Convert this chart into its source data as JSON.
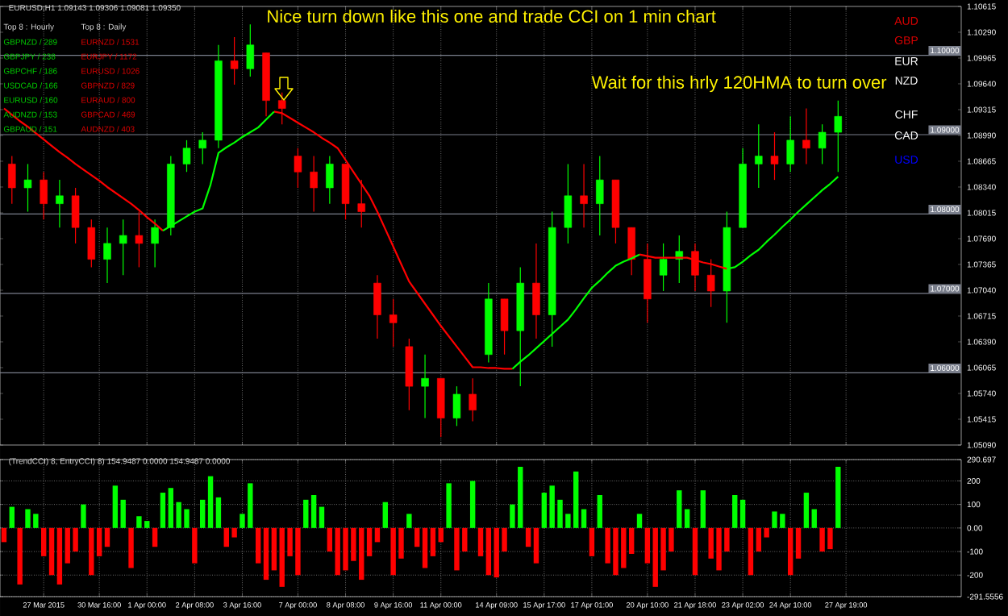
{
  "chart_data": [
    {
      "type": "candlestick",
      "title": "EURUSD,H1 1.09143 1.09306 1.09081 1.09350",
      "annotations": [
        "Nice turn down like this one and trade CCI on 1 min chart",
        "Wait for this hrly 120HMA  to turn over",
        "Top 8 : Hourly",
        "Top 8 : Daily",
        "GBPNZD / 289",
        "GBPJPY / 238",
        "GBPCHF / 186",
        "USDCAD / 166",
        "EURUSD / 160",
        "AUDNZD / 153",
        "GBPAUD / 151",
        "EURNZD / 1531",
        "EURJPY / 1172",
        "EURUSD / 1026",
        "GBPNZD / 829",
        "EURAUD / 800",
        "GBPCAD / 469",
        "AUDNZD / 403",
        "AUD",
        "GBP",
        "EUR",
        "NZD",
        "CHF",
        "CAD",
        "USD"
      ],
      "categories": [
        null,
        null,
        null,
        null,
        null,
        null,
        null,
        null,
        null,
        null,
        null,
        null,
        null,
        null,
        null,
        null,
        null,
        null,
        null,
        null,
        null,
        null,
        null,
        null,
        null,
        null,
        null,
        null,
        null,
        null,
        null,
        null,
        null,
        null,
        null,
        null,
        null,
        null,
        null,
        null,
        null,
        null,
        null,
        null,
        null,
        null,
        null,
        null,
        null,
        null,
        null,
        null,
        null,
        null,
        null,
        null,
        null,
        null,
        null,
        null,
        null,
        null,
        null,
        null,
        null,
        null,
        null,
        null,
        null,
        null,
        null,
        null,
        null,
        null,
        null,
        null,
        null,
        null,
        null,
        null,
        null,
        null,
        null,
        null,
        null,
        null,
        null,
        null,
        null,
        null,
        null,
        null,
        null,
        null,
        null,
        null,
        null,
        null,
        null,
        null,
        null,
        null,
        null,
        null,
        null,
        null,
        null,
        null,
        null,
        null,
        null,
        null,
        null,
        null,
        null,
        null,
        null,
        null,
        null,
        null,
        null
      ],
      "ylim": [
        1.0509,
        1.10615
      ],
      "yticks": [
        {
          "value": 1.0509,
          "label": "1.05090"
        },
        {
          "value": 1.05415,
          "label": "1.05415"
        },
        {
          "value": 1.0574,
          "label": "1.05740"
        },
        {
          "value": 1.06065,
          "label": "1.06065"
        },
        {
          "value": 1.0639,
          "label": "1.06390"
        },
        {
          "value": 1.06715,
          "label": "1.06715"
        },
        {
          "value": 1.0704,
          "label": "1.07040"
        },
        {
          "value": 1.07365,
          "label": "1.07365"
        },
        {
          "value": 1.0769,
          "label": "1.07690"
        },
        {
          "value": 1.08015,
          "label": "1.08015"
        },
        {
          "value": 1.0834,
          "label": "1.08340"
        },
        {
          "value": 1.08665,
          "label": "1.08665"
        },
        {
          "value": 1.0899,
          "label": "1.08990"
        },
        {
          "value": 1.09315,
          "label": "1.09315"
        },
        {
          "value": 1.0964,
          "label": "1.09640"
        },
        {
          "value": 1.09965,
          "label": "1.09965"
        },
        {
          "value": 1.1029,
          "label": "1.10290"
        },
        {
          "value": 1.10615,
          "label": "1.10615"
        }
      ],
      "tick_labels": "y",
      "grid": "x",
      "ref_lines": [
        {
          "axis": "y",
          "value": 1.06,
          "label": "1.06000",
          "color": "#7a7f8c"
        },
        {
          "axis": "y",
          "value": 1.07,
          "label": "1.07000",
          "color": "#7a7f8c"
        },
        {
          "axis": "y",
          "value": 1.08,
          "label": "1.08000",
          "color": "#7a7f8c"
        },
        {
          "axis": "y",
          "value": 1.09,
          "label": "1.09000",
          "color": "#7a7f8c"
        },
        {
          "axis": "y",
          "value": 1.1,
          "label": "1.10000",
          "color": "#7a7f8c"
        }
      ],
      "series": [
        {
          "type": "candlestick",
          "ohlc": [
            null,
            [
              1.0863,
              1.0873,
              1.0813,
              1.0833
            ],
            null,
            [
              1.0833,
              1.0863,
              1.0803,
              1.0843
            ],
            null,
            [
              1.0843,
              1.0853,
              1.0793,
              1.0813
            ],
            null,
            [
              1.0813,
              1.0843,
              1.0783,
              1.0823
            ],
            null,
            [
              1.0823,
              1.0833,
              1.0763,
              1.0783
            ],
            null,
            [
              1.0783,
              1.0793,
              1.0733,
              1.0743
            ],
            null,
            [
              1.0743,
              1.0783,
              1.0713,
              1.0763
            ],
            null,
            [
              1.0763,
              1.0793,
              1.0723,
              1.0773
            ],
            null,
            [
              1.0773,
              1.0803,
              1.0733,
              1.0763
            ],
            null,
            [
              1.0763,
              1.0793,
              1.0733,
              1.0783
            ],
            null,
            [
              1.0783,
              1.0873,
              1.0773,
              1.0863
            ],
            null,
            [
              1.0863,
              1.0893,
              1.0853,
              1.0883
            ],
            null,
            [
              1.0883,
              1.0903,
              1.0863,
              1.0893
            ],
            null,
            [
              1.0893,
              1.1013,
              1.0883,
              1.0993
            ],
            null,
            [
              1.0993,
              1.1023,
              1.0963,
              1.0983
            ],
            null,
            [
              1.0983,
              1.1039,
              1.0973,
              1.1013
            ],
            null,
            [
              1.1003,
              1.1003,
              1.0923,
              1.0943
            ],
            null,
            [
              1.0943,
              1.0953,
              1.0913,
              1.0933
            ],
            null,
            [
              1.0873,
              1.0883,
              1.0833,
              1.0853
            ],
            null,
            [
              1.0853,
              1.0873,
              1.0803,
              1.0833
            ],
            null,
            [
              1.0833,
              1.0873,
              1.0813,
              1.0863
            ],
            null,
            [
              1.0863,
              1.0863,
              1.0793,
              1.0813
            ],
            null,
            [
              1.0813,
              1.0843,
              1.0783,
              1.0803
            ],
            null,
            [
              1.0713,
              1.0723,
              1.0643,
              1.0673
            ],
            null,
            [
              1.0673,
              1.0693,
              1.0633,
              1.0663
            ],
            null,
            [
              1.0633,
              1.0643,
              1.0553,
              1.0583
            ],
            null,
            [
              1.0583,
              1.0623,
              1.0543,
              1.0593
            ],
            null,
            [
              1.0593,
              1.0593,
              1.0519,
              1.0543
            ],
            null,
            [
              1.0543,
              1.0583,
              1.0533,
              1.0573
            ],
            null,
            [
              1.0573,
              1.0593,
              1.0539,
              1.0553
            ],
            null,
            [
              1.0623,
              1.0713,
              1.0613,
              1.0693
            ],
            null,
            [
              1.0693,
              1.0693,
              1.0623,
              1.0653
            ],
            null,
            [
              1.0653,
              1.0733,
              1.0583,
              1.0713
            ],
            null,
            [
              1.0713,
              1.0763,
              1.0643,
              1.0673
            ],
            null,
            [
              1.0673,
              1.0803,
              1.0633,
              1.0783
            ],
            null,
            [
              1.0783,
              1.0863,
              1.0763,
              1.0823
            ],
            null,
            [
              1.0823,
              1.0863,
              1.0783,
              1.0813
            ],
            null,
            [
              1.0813,
              1.0873,
              1.0773,
              1.0843
            ],
            null,
            [
              1.0843,
              1.0843,
              1.0763,
              1.0783
            ],
            null,
            [
              1.0783,
              1.0783,
              1.0723,
              1.0743
            ],
            null,
            [
              1.0743,
              1.0763,
              1.0663,
              1.0693
            ],
            null,
            [
              1.0723,
              1.0763,
              1.0703,
              1.0743
            ],
            null,
            [
              1.0743,
              1.0773,
              1.0713,
              1.0753
            ],
            null,
            [
              1.0753,
              1.0763,
              1.0703,
              1.0723
            ],
            null,
            [
              1.0723,
              1.0743,
              1.0683,
              1.0703
            ],
            null,
            [
              1.0703,
              1.0803,
              1.0663,
              1.0783
            ],
            null,
            [
              1.0783,
              1.0883,
              1.0783,
              1.0863
            ],
            null,
            [
              1.0863,
              1.0913,
              1.0833,
              1.0873
            ],
            null,
            [
              1.0873,
              1.0903,
              1.0843,
              1.0863
            ],
            null,
            [
              1.0863,
              1.0923,
              1.0853,
              1.0893
            ],
            null,
            [
              1.0893,
              1.0933,
              1.0863,
              1.0883
            ],
            null,
            [
              1.0883,
              1.0913,
              1.0863,
              1.0903
            ],
            null,
            [
              1.0903,
              1.0943,
              1.0853,
              1.0923
            ],
            null,
            null,
            null,
            null,
            null,
            null,
            null,
            null,
            null,
            null,
            null,
            null,
            null,
            null,
            null
          ],
          "colors": [
            null,
            "#ff0000",
            null,
            "#00ff00",
            null,
            "#ff0000",
            null,
            "#00ff00",
            null,
            "#ff0000",
            null,
            "#ff0000",
            null,
            "#00ff00",
            null,
            "#00ff00",
            null,
            "#ff0000",
            null,
            "#00ff00",
            null,
            "#00ff00",
            null,
            "#00ff00",
            null,
            "#00ff00",
            null,
            "#00ff00",
            null,
            "#ff0000",
            null,
            "#00ff00",
            null,
            "#ff0000",
            null,
            "#ff0000",
            null,
            "#ff0000",
            null,
            "#ff0000",
            null,
            "#00ff00",
            null,
            "#ff0000",
            null,
            "#ff0000",
            null,
            "#ff0000",
            null,
            "#ff0000",
            null,
            "#ff0000",
            null,
            "#00ff00",
            null,
            "#ff0000",
            null,
            "#00ff00",
            null,
            "#ff0000",
            null,
            "#00ff00",
            null,
            "#ff0000",
            null,
            "#00ff00",
            null,
            "#ff0000",
            null,
            "#00ff00",
            null,
            "#00ff00",
            null,
            "#ff0000",
            null,
            "#00ff00",
            null,
            "#ff0000",
            null,
            "#ff0000",
            null,
            "#ff0000",
            null,
            "#00ff00",
            null,
            "#00ff00",
            null,
            "#ff0000",
            null,
            "#ff0000",
            null,
            "#00ff00",
            null,
            "#00ff00",
            null,
            "#00ff00",
            null,
            "#ff0000",
            null,
            "#00ff00",
            null,
            "#ff0000",
            null,
            "#00ff00",
            null,
            "#00ff00",
            null,
            null,
            null,
            null,
            null,
            null,
            null,
            null,
            null,
            null,
            null,
            null,
            null,
            null,
            null
          ]
        },
        {
          "type": "line",
          "color": "#ff0000",
          "values": [
            1.0933,
            1.0925,
            1.0917,
            1.091,
            1.0902,
            1.0894,
            1.0886,
            1.0878,
            1.0871,
            1.0863,
            1.0856,
            1.0849,
            1.0842,
            1.0834,
            1.0827,
            1.082,
            1.0813,
            1.0805,
            1.0796,
            1.0788,
            1.0779,
            null,
            null,
            null,
            null,
            null,
            null,
            null,
            null,
            null,
            null,
            null,
            null,
            null,
            1.0929,
            1.0927,
            1.0921,
            1.0915,
            1.0909,
            1.0903,
            1.0896,
            1.089,
            1.0883,
            1.0868,
            1.0853,
            1.0838,
            1.0823,
            1.0803,
            1.0781,
            1.0759,
            1.0737,
            1.0715,
            1.0701,
            1.0687,
            1.0673,
            1.0659,
            1.0646,
            1.0633,
            1.062,
            1.0607,
            1.0607,
            1.0606,
            1.0606,
            1.0605,
            1.0605,
            null,
            null,
            null,
            null,
            null,
            null,
            null,
            null,
            null,
            null,
            null,
            null,
            null,
            null,
            null,
            1.0749,
            1.0747,
            1.0745,
            1.0745,
            1.0745,
            1.0745,
            1.0745,
            1.0742,
            1.0739,
            1.0737,
            1.0734,
            1.0731,
            null,
            null,
            null,
            null,
            null,
            null,
            null,
            null,
            null,
            null,
            null,
            null,
            null,
            null,
            null,
            null,
            null,
            null,
            null,
            null,
            null,
            null,
            null,
            null,
            null,
            null,
            null,
            null,
            null
          ]
        },
        {
          "type": "line",
          "color": "#00ff00",
          "values": [
            null,
            null,
            null,
            null,
            null,
            null,
            null,
            null,
            null,
            null,
            null,
            null,
            null,
            null,
            null,
            null,
            null,
            null,
            null,
            null,
            1.0779,
            1.0785,
            1.0791,
            1.0797,
            1.0803,
            1.0807,
            1.0837,
            1.0877,
            1.0884,
            1.089,
            1.0897,
            1.0903,
            1.0909,
            1.0919,
            1.0929,
            null,
            null,
            null,
            null,
            null,
            null,
            null,
            null,
            null,
            null,
            null,
            null,
            null,
            null,
            null,
            null,
            null,
            null,
            null,
            null,
            null,
            null,
            null,
            null,
            null,
            null,
            null,
            null,
            null,
            1.0605,
            1.0614,
            1.0622,
            1.0631,
            1.064,
            1.0649,
            1.0658,
            1.0667,
            1.068,
            1.0694,
            1.0707,
            1.0716,
            1.0726,
            1.0735,
            1.074,
            1.0744,
            1.0749,
            null,
            null,
            null,
            null,
            null,
            null,
            null,
            null,
            null,
            null,
            1.0731,
            1.0733,
            1.074,
            1.0748,
            1.0755,
            1.0765,
            1.0774,
            1.0784,
            1.0793,
            1.0803,
            1.0812,
            1.0821,
            1.083,
            1.0838,
            1.0847,
            null,
            null,
            null,
            null,
            null,
            null,
            null,
            null,
            null,
            null,
            null,
            null,
            null,
            null,
            null
          ]
        }
      ]
    },
    {
      "type": "bar",
      "title": "(TrendCCI) 8, EntryCCI) 8) 154.9487 0.0000 154.9487 0.0000",
      "categories": [
        null,
        null,
        null,
        null,
        null,
        "27 Mar 2015",
        null,
        null,
        null,
        null,
        null,
        null,
        "30 Mar 16:00",
        null,
        null,
        null,
        null,
        null,
        "1 Apr 00:00",
        null,
        null,
        null,
        null,
        null,
        "2 Apr 08:00",
        null,
        null,
        null,
        null,
        null,
        "3 Apr 16:00",
        null,
        null,
        null,
        null,
        null,
        null,
        "7 Apr 00:00",
        null,
        null,
        null,
        null,
        null,
        "8 Apr 08:00",
        null,
        null,
        null,
        null,
        null,
        "9 Apr 16:00",
        null,
        null,
        null,
        null,
        null,
        "11 Apr 00:00",
        null,
        null,
        null,
        null,
        null,
        null,
        "14 Apr 09:00",
        null,
        null,
        null,
        null,
        null,
        "15 Apr 17:00",
        null,
        null,
        null,
        null,
        null,
        "17 Apr 01:00",
        null,
        null,
        null,
        null,
        null,
        null,
        "20 Apr 10:00",
        null,
        null,
        null,
        null,
        null,
        "21 Apr 18:00",
        null,
        null,
        null,
        null,
        null,
        "23 Apr 02:00",
        null,
        null,
        null,
        null,
        null,
        "24 Apr 10:00",
        null,
        null,
        null,
        null,
        null,
        null,
        "27 Apr 19:00",
        null,
        null,
        null,
        null,
        null,
        null,
        null,
        null,
        null,
        null,
        null,
        null,
        null,
        null
      ],
      "ylim": [
        -291.5556,
        290.697
      ],
      "yticks": [
        {
          "value": -291.5556,
          "label": "-291.5556"
        },
        -200,
        -100,
        {
          "value": 0,
          "label": "0.00"
        },
        100,
        200,
        {
          "value": 290.697,
          "label": "290.697"
        }
      ],
      "grid": true,
      "values": [
        -60,
        90,
        -240,
        80,
        60,
        -120,
        -200,
        -240,
        -150,
        -100,
        100,
        -200,
        -120,
        -80,
        180,
        120,
        -170,
        50,
        30,
        -80,
        150,
        170,
        110,
        80,
        -150,
        120,
        220,
        130,
        -80,
        -40,
        60,
        190,
        -150,
        -220,
        -180,
        -250,
        -120,
        -200,
        120,
        140,
        90,
        -100,
        -200,
        -180,
        -140,
        -220,
        -120,
        -60,
        110,
        -200,
        -130,
        60,
        -80,
        -170,
        -120,
        -60,
        190,
        -180,
        -100,
        200,
        -120,
        -200,
        -210,
        -100,
        100,
        260,
        -80,
        -150,
        150,
        180,
        120,
        60,
        240,
        80,
        -120,
        140,
        -150,
        -200,
        -170,
        -110,
        60,
        -150,
        -250,
        -180,
        -100,
        160,
        80,
        -200,
        160,
        -130,
        -180,
        -100,
        140,
        120,
        -200,
        -100,
        -40,
        70,
        60,
        -200,
        -130,
        150,
        80,
        -100,
        -90,
        260,
        null,
        null,
        null,
        null,
        null,
        null,
        null,
        null,
        null,
        null,
        null,
        null,
        null,
        null,
        null
      ],
      "colors": [
        "#ff0000",
        "#00ff00",
        "#ff0000",
        "#00ff00",
        "#00ff00",
        "#ff0000",
        "#ff0000",
        "#ff0000",
        "#ff0000",
        "#ff0000",
        "#00ff00",
        "#ff0000",
        "#ff0000",
        "#ff0000",
        "#00ff00",
        "#00ff00",
        "#ff0000",
        "#00ff00",
        "#00ff00",
        "#ff0000",
        "#00ff00",
        "#00ff00",
        "#00ff00",
        "#00ff00",
        "#ff0000",
        "#00ff00",
        "#00ff00",
        "#00ff00",
        "#ff0000",
        "#ff0000",
        "#00ff00",
        "#00ff00",
        "#ff0000",
        "#ff0000",
        "#ff0000",
        "#ff0000",
        "#ff0000",
        "#ff0000",
        "#00ff00",
        "#00ff00",
        "#00ff00",
        "#ff0000",
        "#ff0000",
        "#ff0000",
        "#ff0000",
        "#ff0000",
        "#ff0000",
        "#ff0000",
        "#00ff00",
        "#ff0000",
        "#ff0000",
        "#00ff00",
        "#ff0000",
        "#ff0000",
        "#ff0000",
        "#ff0000",
        "#00ff00",
        "#ff0000",
        "#ff0000",
        "#00ff00",
        "#ff0000",
        "#ff0000",
        "#ff0000",
        "#ff0000",
        "#00ff00",
        "#00ff00",
        "#ff0000",
        "#ff0000",
        "#00ff00",
        "#00ff00",
        "#00ff00",
        "#00ff00",
        "#00ff00",
        "#00ff00",
        "#ff0000",
        "#00ff00",
        "#ff0000",
        "#ff0000",
        "#ff0000",
        "#ff0000",
        "#00ff00",
        "#ff0000",
        "#ff0000",
        "#ff0000",
        "#ff0000",
        "#00ff00",
        "#00ff00",
        "#ff0000",
        "#00ff00",
        "#ff0000",
        "#ff0000",
        "#ff0000",
        "#00ff00",
        "#00ff00",
        "#ff0000",
        "#ff0000",
        "#ff0000",
        "#00ff00",
        "#00ff00",
        "#ff0000",
        "#ff0000",
        "#00ff00",
        "#00ff00",
        "#ff0000",
        "#ff0000",
        "#00ff00",
        null,
        null,
        null,
        null,
        null,
        null,
        null,
        null,
        null,
        null,
        null,
        null,
        null,
        null,
        null
      ]
    }
  ]
}
